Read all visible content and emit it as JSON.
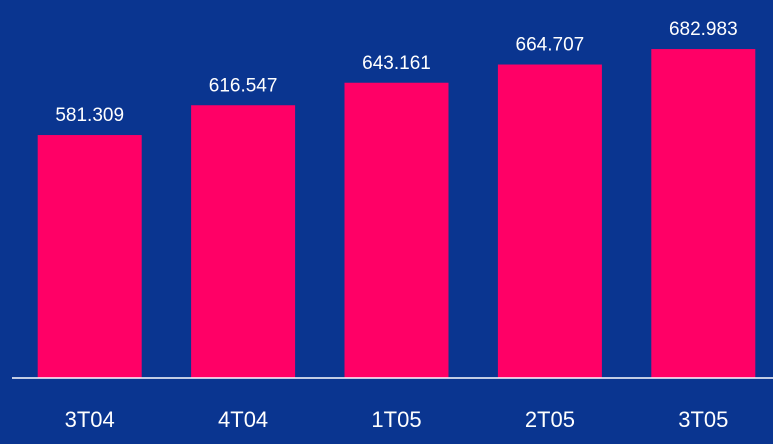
{
  "chart_data": {
    "type": "bar",
    "categories": [
      "3T04",
      "4T04",
      "1T05",
      "2T05",
      "3T05"
    ],
    "values": [
      581.309,
      616.547,
      643.161,
      664.707,
      682.983
    ],
    "color": "#ff0066",
    "ylim": [
      294,
      741
    ]
  }
}
